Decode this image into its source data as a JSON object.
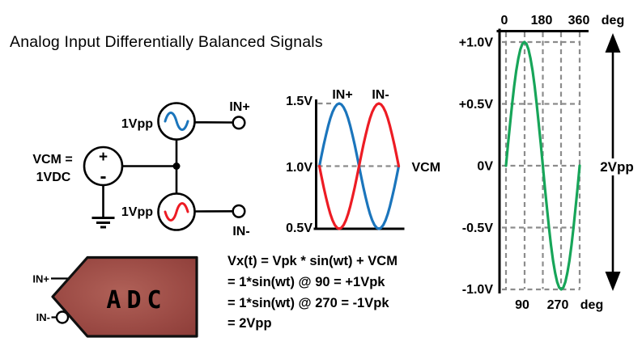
{
  "title": "Analog Input Differentially Balanced Signals",
  "colors": {
    "blue": "#1b75bc",
    "red": "#ed1c24",
    "green": "#17a559",
    "dash_gray": "#8c8c8c",
    "ink": "#000000",
    "adc_light": "#b06158",
    "adc_mid": "#9c4b45",
    "adc_dark": "#8a3a36",
    "adc_text": "#ffffff"
  },
  "circuit": {
    "vcm_line1": "VCM =",
    "vcm_line2": "1VDC",
    "plus": "+",
    "minus": "-",
    "src_top_label": "1Vpp",
    "src_bottom_label": "1Vpp",
    "in_plus": "IN+",
    "in_minus": "IN-"
  },
  "adc": {
    "label": "ADC",
    "in_plus": "IN+",
    "in_minus": "IN-"
  },
  "equations": [
    "Vx(t) = Vpk * sin(wt) + VCM",
    "= 1*sin(wt) @ 90 = +1Vpk",
    "= 1*sin(wt) @ 270 = -1Vpk",
    "= 2Vpp"
  ],
  "chart_data": [
    {
      "id": "differential-inputs",
      "type": "line",
      "title": "",
      "xlabel": "",
      "ylabel": "",
      "xlim_deg": [
        0,
        360
      ],
      "ylim": [
        0.5,
        1.5
      ],
      "y_ticks": [
        "1.5V",
        "1.0V",
        "0.5V"
      ],
      "y_tick_values": [
        1.5,
        1.0,
        0.5
      ],
      "vcm_label": "VCM",
      "vcm_v": 1.0,
      "grid": "dashed horizontal at 1.5V and 1.0V",
      "x_deg": [
        0,
        10,
        20,
        30,
        40,
        50,
        60,
        70,
        80,
        90,
        100,
        110,
        120,
        130,
        140,
        150,
        160,
        170,
        180,
        190,
        200,
        210,
        220,
        230,
        240,
        250,
        260,
        270,
        280,
        290,
        300,
        310,
        320,
        330,
        340,
        350,
        360
      ],
      "series": [
        {
          "name": "IN+",
          "color": "#1b75bc",
          "vcm_offset_v": 1.0,
          "amplitude_v": 0.5,
          "phase_deg": 0,
          "values": [
            1,
            1.087,
            1.171,
            1.25,
            1.321,
            1.383,
            1.433,
            1.47,
            1.492,
            1.5,
            1.492,
            1.47,
            1.433,
            1.383,
            1.321,
            1.25,
            1.171,
            1.087,
            1,
            0.913,
            0.829,
            0.75,
            0.679,
            0.617,
            0.567,
            0.53,
            0.508,
            0.5,
            0.508,
            0.53,
            0.567,
            0.617,
            0.679,
            0.75,
            0.829,
            0.913,
            1
          ]
        },
        {
          "name": "IN-",
          "color": "#ed1c24",
          "vcm_offset_v": 1.0,
          "amplitude_v": 0.5,
          "phase_deg": 180,
          "values": [
            1,
            0.913,
            0.829,
            0.75,
            0.679,
            0.617,
            0.567,
            0.53,
            0.508,
            0.5,
            0.508,
            0.53,
            0.567,
            0.617,
            0.679,
            0.75,
            0.829,
            0.913,
            1,
            1.087,
            1.171,
            1.25,
            1.321,
            1.383,
            1.433,
            1.47,
            1.492,
            1.5,
            1.492,
            1.47,
            1.433,
            1.383,
            1.321,
            1.25,
            1.171,
            1.087,
            1
          ]
        }
      ]
    },
    {
      "id": "output-swing",
      "type": "line",
      "title": "",
      "xlabel": "deg",
      "ylabel": "",
      "xlim_deg": [
        0,
        360
      ],
      "ylim": [
        -1.0,
        1.0
      ],
      "x_ticks_top": [
        "0",
        "180",
        "360"
      ],
      "x_ticks_top_deg": [
        0,
        180,
        360
      ],
      "x_unit_top": "deg",
      "x_ticks_bottom": [
        "90",
        "270"
      ],
      "x_ticks_bottom_deg": [
        90,
        270
      ],
      "x_unit_bottom": "deg",
      "y_ticks": [
        "+1.0V",
        "+0.5V",
        "0V",
        "-0.5V",
        "-1.0V"
      ],
      "y_tick_values": [
        1.0,
        0.5,
        0,
        -0.5,
        -1.0
      ],
      "swing_label": "2Vpp",
      "peak_v": 1.0,
      "trough_v": -1.0,
      "grid": "dashed at 0/90/180/270/360 deg and every 0.5V",
      "x_deg": [
        0,
        10,
        20,
        30,
        40,
        50,
        60,
        70,
        80,
        90,
        100,
        110,
        120,
        130,
        140,
        150,
        160,
        170,
        180,
        190,
        200,
        210,
        220,
        230,
        240,
        250,
        260,
        270,
        280,
        290,
        300,
        310,
        320,
        330,
        340,
        350,
        360
      ],
      "series": [
        {
          "name": "Vx(t)",
          "color": "#17a559",
          "vcm_offset_v": 0,
          "amplitude_v": 1.0,
          "phase_deg": 0,
          "values": [
            0,
            0.174,
            0.342,
            0.5,
            0.643,
            0.766,
            0.866,
            0.94,
            0.985,
            1,
            0.985,
            0.94,
            0.866,
            0.766,
            0.643,
            0.5,
            0.342,
            0.174,
            0,
            -0.174,
            -0.342,
            -0.5,
            -0.643,
            -0.766,
            -0.866,
            -0.94,
            -0.985,
            -1,
            -0.985,
            -0.94,
            -0.866,
            -0.766,
            -0.643,
            -0.5,
            -0.342,
            -0.174,
            0
          ]
        }
      ]
    }
  ]
}
